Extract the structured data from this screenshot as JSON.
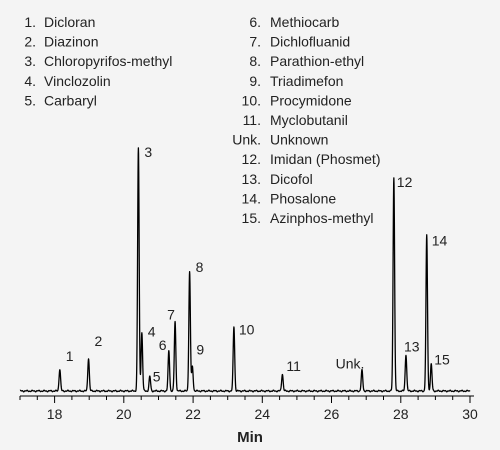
{
  "chart_data": {
    "type": "line",
    "xlabel": "Min",
    "xlim": [
      17,
      30
    ],
    "xticks": [
      "18",
      "20",
      "22",
      "24",
      "26",
      "28",
      "30"
    ],
    "xtick_values": [
      18,
      20,
      22,
      24,
      26,
      28,
      30
    ],
    "grid": false,
    "legend_placement": "top-left",
    "colors": {
      "trace": "#000000",
      "background": "#f4f4f4",
      "text": "#222222"
    },
    "legend": [
      {
        "num": "1.",
        "name": "Dicloran"
      },
      {
        "num": "2.",
        "name": "Diazinon"
      },
      {
        "num": "3.",
        "name": "Chloropyrifos-methyl"
      },
      {
        "num": "4.",
        "name": "Vinclozolin"
      },
      {
        "num": "5.",
        "name": "Carbaryl"
      },
      {
        "num": "6.",
        "name": "Methiocarb"
      },
      {
        "num": "7.",
        "name": "Dichlofluanid"
      },
      {
        "num": "8.",
        "name": "Parathion-ethyl"
      },
      {
        "num": "9.",
        "name": "Triadimefon"
      },
      {
        "num": "10.",
        "name": "Procymidone"
      },
      {
        "num": "11.",
        "name": "Myclobutanil"
      },
      {
        "num": "Unk.",
        "name": "Unknown"
      },
      {
        "num": "12.",
        "name": "Imidan (Phosmet)"
      },
      {
        "num": "13.",
        "name": "Dicofol"
      },
      {
        "num": "14.",
        "name": "Phosalone"
      },
      {
        "num": "15.",
        "name": "Azinphos-methyl"
      }
    ],
    "peaks": [
      {
        "label": "1",
        "x": 18.15,
        "height": 0.09
      },
      {
        "label": "2",
        "x": 18.98,
        "height": 0.135
      },
      {
        "label": "3",
        "x": 20.42,
        "height": 1.0
      },
      {
        "label": "4",
        "x": 20.52,
        "height": 0.24
      },
      {
        "label": "5",
        "x": 20.75,
        "height": 0.06
      },
      {
        "label": "6",
        "x": 21.3,
        "height": 0.165
      },
      {
        "label": "7",
        "x": 21.48,
        "height": 0.285
      },
      {
        "label": "8",
        "x": 21.9,
        "height": 0.49
      },
      {
        "label": "9",
        "x": 21.98,
        "height": 0.1
      },
      {
        "label": "10",
        "x": 23.18,
        "height": 0.265
      },
      {
        "label": "11",
        "x": 24.58,
        "height": 0.07
      },
      {
        "label": "Unk.",
        "x": 26.88,
        "height": 0.085
      },
      {
        "label": "12",
        "x": 27.8,
        "height": 0.88
      },
      {
        "label": "13",
        "x": 28.15,
        "height": 0.15
      },
      {
        "label": "14",
        "x": 28.75,
        "height": 0.64
      },
      {
        "label": "15",
        "x": 28.88,
        "height": 0.11
      }
    ]
  }
}
